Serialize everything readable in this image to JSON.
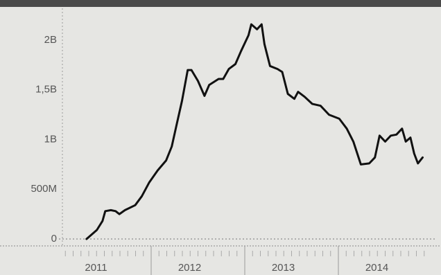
{
  "chart_data": {
    "type": "line",
    "x": [
      2011.31,
      2011.42,
      2011.48,
      2011.51,
      2011.57,
      2011.62,
      2011.66,
      2011.72,
      2011.83,
      2011.9,
      2011.98,
      2012.07,
      2012.16,
      2012.22,
      2012.27,
      2012.33,
      2012.39,
      2012.43,
      2012.5,
      2012.57,
      2012.62,
      2012.72,
      2012.77,
      2012.83,
      2012.9,
      2012.96,
      2013.04,
      2013.07,
      2013.13,
      2013.18,
      2013.21,
      2013.27,
      2013.35,
      2013.4,
      2013.46,
      2013.53,
      2013.57,
      2013.64,
      2013.72,
      2013.81,
      2013.9,
      2014.01,
      2014.09,
      2014.16,
      2014.24,
      2014.33,
      2014.39,
      2014.44,
      2014.5,
      2014.56,
      2014.62,
      2014.68,
      2014.72,
      2014.77,
      2014.81,
      2014.85,
      2014.9
    ],
    "series": [
      {
        "color": "#111111",
        "values": [
          0,
          0.09,
          0.18,
          0.28,
          0.29,
          0.28,
          0.25,
          0.29,
          0.34,
          0.43,
          0.57,
          0.69,
          0.79,
          0.93,
          1.14,
          1.39,
          1.7,
          1.7,
          1.59,
          1.44,
          1.55,
          1.61,
          1.61,
          1.71,
          1.76,
          1.89,
          2.05,
          2.16,
          2.11,
          2.16,
          1.96,
          1.74,
          1.71,
          1.68,
          1.46,
          1.41,
          1.48,
          1.43,
          1.36,
          1.34,
          1.25,
          1.21,
          1.11,
          0.98,
          0.75,
          0.76,
          0.82,
          1.04,
          0.98,
          1.04,
          1.05,
          1.11,
          0.98,
          1.02,
          0.86,
          0.76,
          0.82
        ]
      }
    ],
    "xlim": [
      2011,
      2015
    ],
    "xticks": [
      2011,
      2012,
      2013,
      2014
    ],
    "ylim": [
      -0.07,
      2.3
    ],
    "yticks": [
      0,
      {
        "value": 0.5,
        "label": "500M"
      },
      {
        "value": 1,
        "label": "1B"
      },
      {
        "value": 1.5,
        "label": "1,5B"
      },
      {
        "value": 2,
        "label": "2B"
      }
    ]
  }
}
